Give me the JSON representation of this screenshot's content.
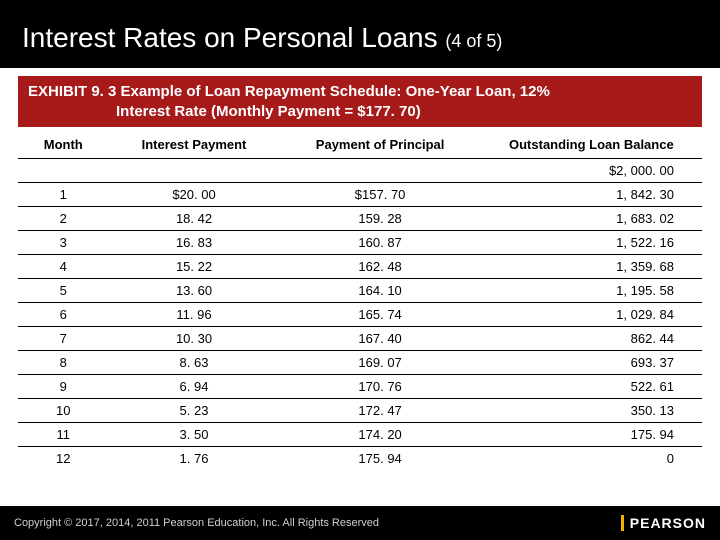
{
  "colors": {
    "title_bg": "#000000",
    "title_fg": "#ffffff",
    "exhibit_bg": "#a61a1a",
    "exhibit_fg": "#ffffff",
    "rule": "#000000",
    "footer_bg": "#000000",
    "footer_fg": "#cfcfcf",
    "brand_accent": "#f0b400"
  },
  "title": {
    "main": "Interest Rates on Personal Loans",
    "counter": "(4 of 5)"
  },
  "exhibit": {
    "label": "EXHIBIT 9. 3",
    "line1": "Example of Loan Repayment Schedule: One-Year Loan, 12%",
    "line2": "Interest Rate (Monthly Payment = $177. 70)"
  },
  "table": {
    "headers": {
      "month": "Month",
      "interest": "Interest Payment",
      "principal": "Payment of Principal",
      "balance": "Outstanding Loan Balance"
    },
    "initial_balance": "$2, 000. 00",
    "rows": [
      {
        "month": "1",
        "interest": "$20. 00",
        "principal": "$157. 70",
        "balance": "1, 842. 30"
      },
      {
        "month": "2",
        "interest": "18. 42",
        "principal": "159. 28",
        "balance": "1, 683. 02"
      },
      {
        "month": "3",
        "interest": "16. 83",
        "principal": "160. 87",
        "balance": "1, 522. 16"
      },
      {
        "month": "4",
        "interest": "15. 22",
        "principal": "162. 48",
        "balance": "1, 359. 68"
      },
      {
        "month": "5",
        "interest": "13. 60",
        "principal": "164. 10",
        "balance": "1, 195. 58"
      },
      {
        "month": "6",
        "interest": "11. 96",
        "principal": "165. 74",
        "balance": "1, 029. 84"
      },
      {
        "month": "7",
        "interest": "10. 30",
        "principal": "167. 40",
        "balance": "862. 44"
      },
      {
        "month": "8",
        "interest": "8. 63",
        "principal": "169. 07",
        "balance": "693. 37"
      },
      {
        "month": "9",
        "interest": "6. 94",
        "principal": "170. 76",
        "balance": "522. 61"
      },
      {
        "month": "10",
        "interest": "5. 23",
        "principal": "172. 47",
        "balance": "350. 13"
      },
      {
        "month": "11",
        "interest": "3. 50",
        "principal": "174. 20",
        "balance": "175. 94"
      },
      {
        "month": "12",
        "interest": "1. 76",
        "principal": "175. 94",
        "balance": "0"
      }
    ]
  },
  "footer": {
    "copyright": "Copyright © 2017, 2014, 2011 Pearson Education, Inc. All Rights Reserved",
    "brand": "PEARSON"
  }
}
